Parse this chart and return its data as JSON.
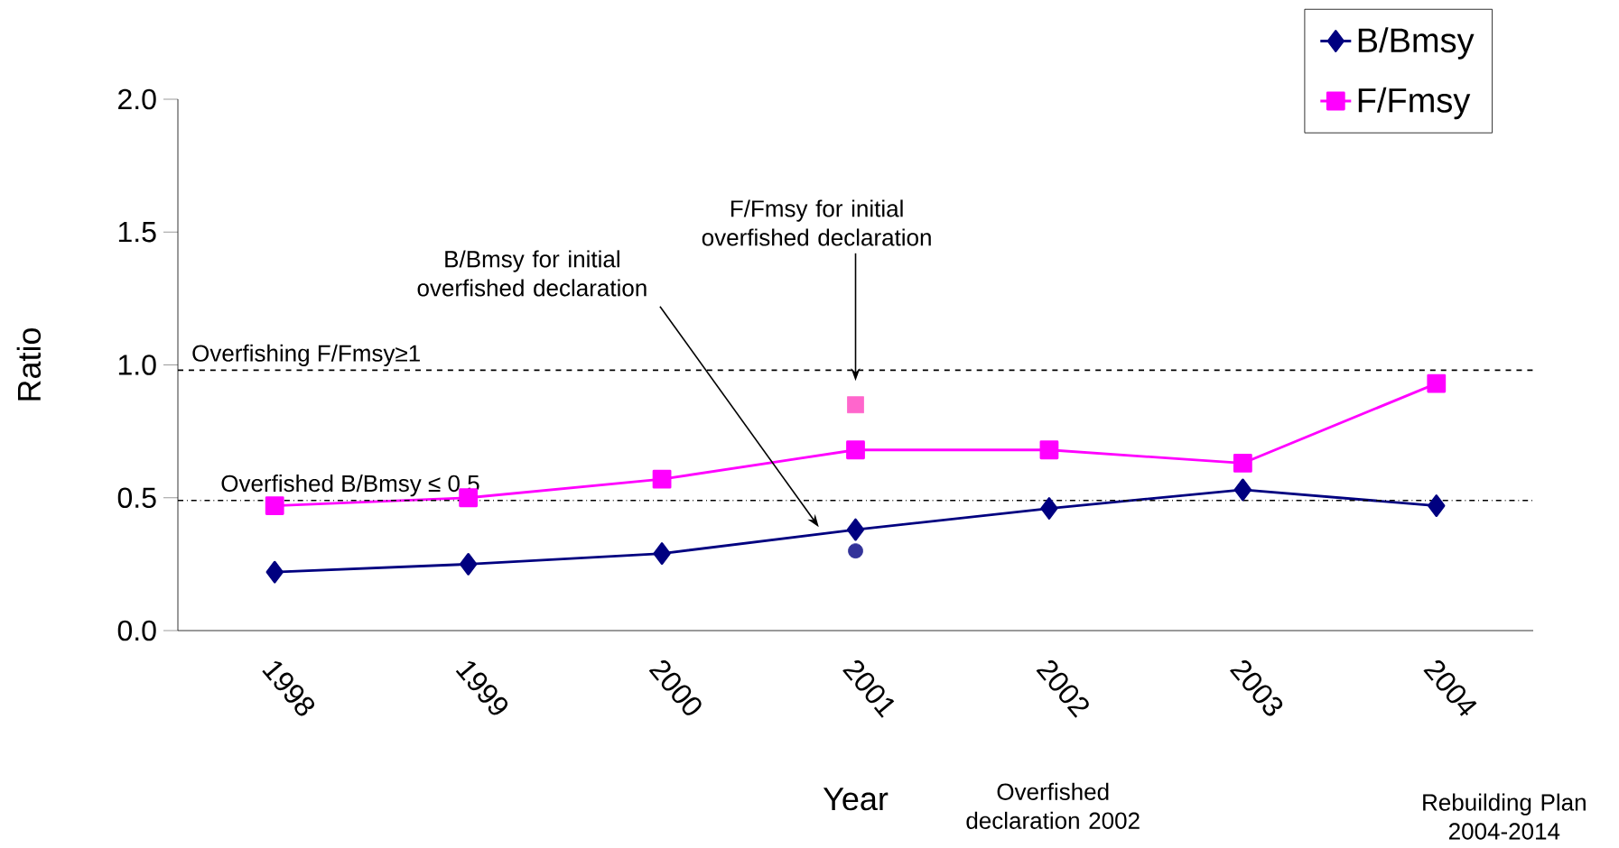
{
  "chart_data": {
    "type": "line",
    "categories": [
      "1998",
      "1999",
      "2000",
      "2001",
      "2002",
      "2003",
      "2004"
    ],
    "xlabel": "Year",
    "ylabel": "Ratio",
    "ylim": [
      0,
      2
    ],
    "yticks": [
      {
        "value": 0,
        "label": "0.0"
      },
      {
        "value": 0.5,
        "label": "0.5"
      },
      {
        "value": 1,
        "label": "1.0"
      },
      {
        "value": 1.5,
        "label": "1.5"
      },
      {
        "value": 2,
        "label": "2.0"
      }
    ],
    "legend": "top right",
    "grid": false,
    "series": [
      {
        "name": "B/Bmsy",
        "color": "#000080",
        "marker": "diamond",
        "values": [
          0.22,
          0.25,
          0.29,
          0.38,
          0.46,
          0.53,
          0.47
        ]
      },
      {
        "name": "F/Fmsy",
        "color": "#ff00ff",
        "marker": "square",
        "values": [
          0.47,
          0.5,
          0.57,
          0.68,
          0.68,
          0.63,
          0.93
        ]
      },
      {
        "type": "scatter",
        "color": "#ff66cc",
        "marker": "square",
        "values": [
          null,
          null,
          null,
          0.85,
          null,
          null,
          null
        ]
      },
      {
        "type": "scatter",
        "color": "#333399",
        "marker": "circle",
        "values": [
          null,
          null,
          null,
          0.3,
          null,
          null,
          null
        ]
      }
    ],
    "ref_lines": [
      {
        "axis": "y",
        "value": 0.98,
        "label": "Overfishing F/Fmsy≥1",
        "line_style": "dashed",
        "color": "#000000"
      },
      {
        "axis": "y",
        "value": 0.49,
        "label": "Overfished B/Bmsy ≤ 0.5",
        "line_style": "dashdot",
        "color": "#000000"
      }
    ],
    "annotations": [
      "B/Bmsy for initial overfished declaration",
      "F/Fmsy for initial overfished declaration",
      "Overfished declaration 2002",
      "Rebuilding Plan 2004-2014"
    ]
  }
}
